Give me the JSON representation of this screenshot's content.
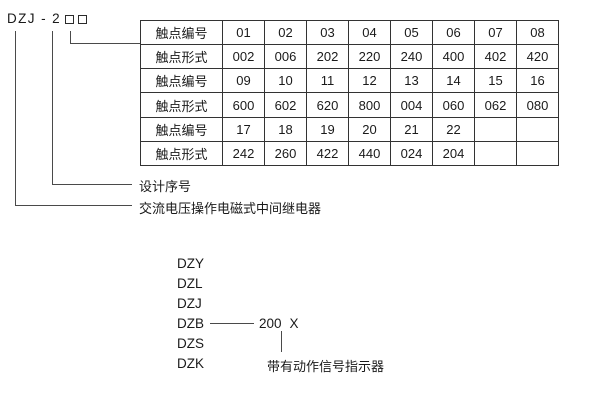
{
  "model_header": {
    "code": "DZJ - 2"
  },
  "callouts": {
    "design_serial": "设计序号",
    "relay_type": "交流电压操作电磁式中间继电器"
  },
  "contacts_table": {
    "rows": [
      {
        "label": "触点编号",
        "cells": [
          "01",
          "02",
          "03",
          "04",
          "05",
          "06",
          "07",
          "08"
        ]
      },
      {
        "label": "触点形式",
        "cells": [
          "002",
          "006",
          "202",
          "220",
          "240",
          "400",
          "402",
          "420"
        ]
      },
      {
        "label": "触点编号",
        "cells": [
          "09",
          "10",
          "11",
          "12",
          "13",
          "14",
          "15",
          "16"
        ]
      },
      {
        "label": "触点形式",
        "cells": [
          "600",
          "602",
          "620",
          "800",
          "004",
          "060",
          "062",
          "080"
        ]
      },
      {
        "label": "触点编号",
        "cells": [
          "17",
          "18",
          "19",
          "20",
          "21",
          "22",
          "",
          ""
        ]
      },
      {
        "label": "触点形式",
        "cells": [
          "242",
          "260",
          "422",
          "440",
          "024",
          "204",
          "",
          ""
        ]
      }
    ]
  },
  "model_list": {
    "items": [
      "DZY",
      "DZL",
      "DZJ",
      "DZB",
      "DZS",
      "DZK"
    ],
    "dzb_value": "200",
    "dzb_variant": "X",
    "indicator_note": "带有动作信号指示器"
  },
  "colors": {
    "ink": "#1a1a1a",
    "table_border": "#333333",
    "connector_line": "#4a4a4a",
    "background": "#ffffff"
  }
}
